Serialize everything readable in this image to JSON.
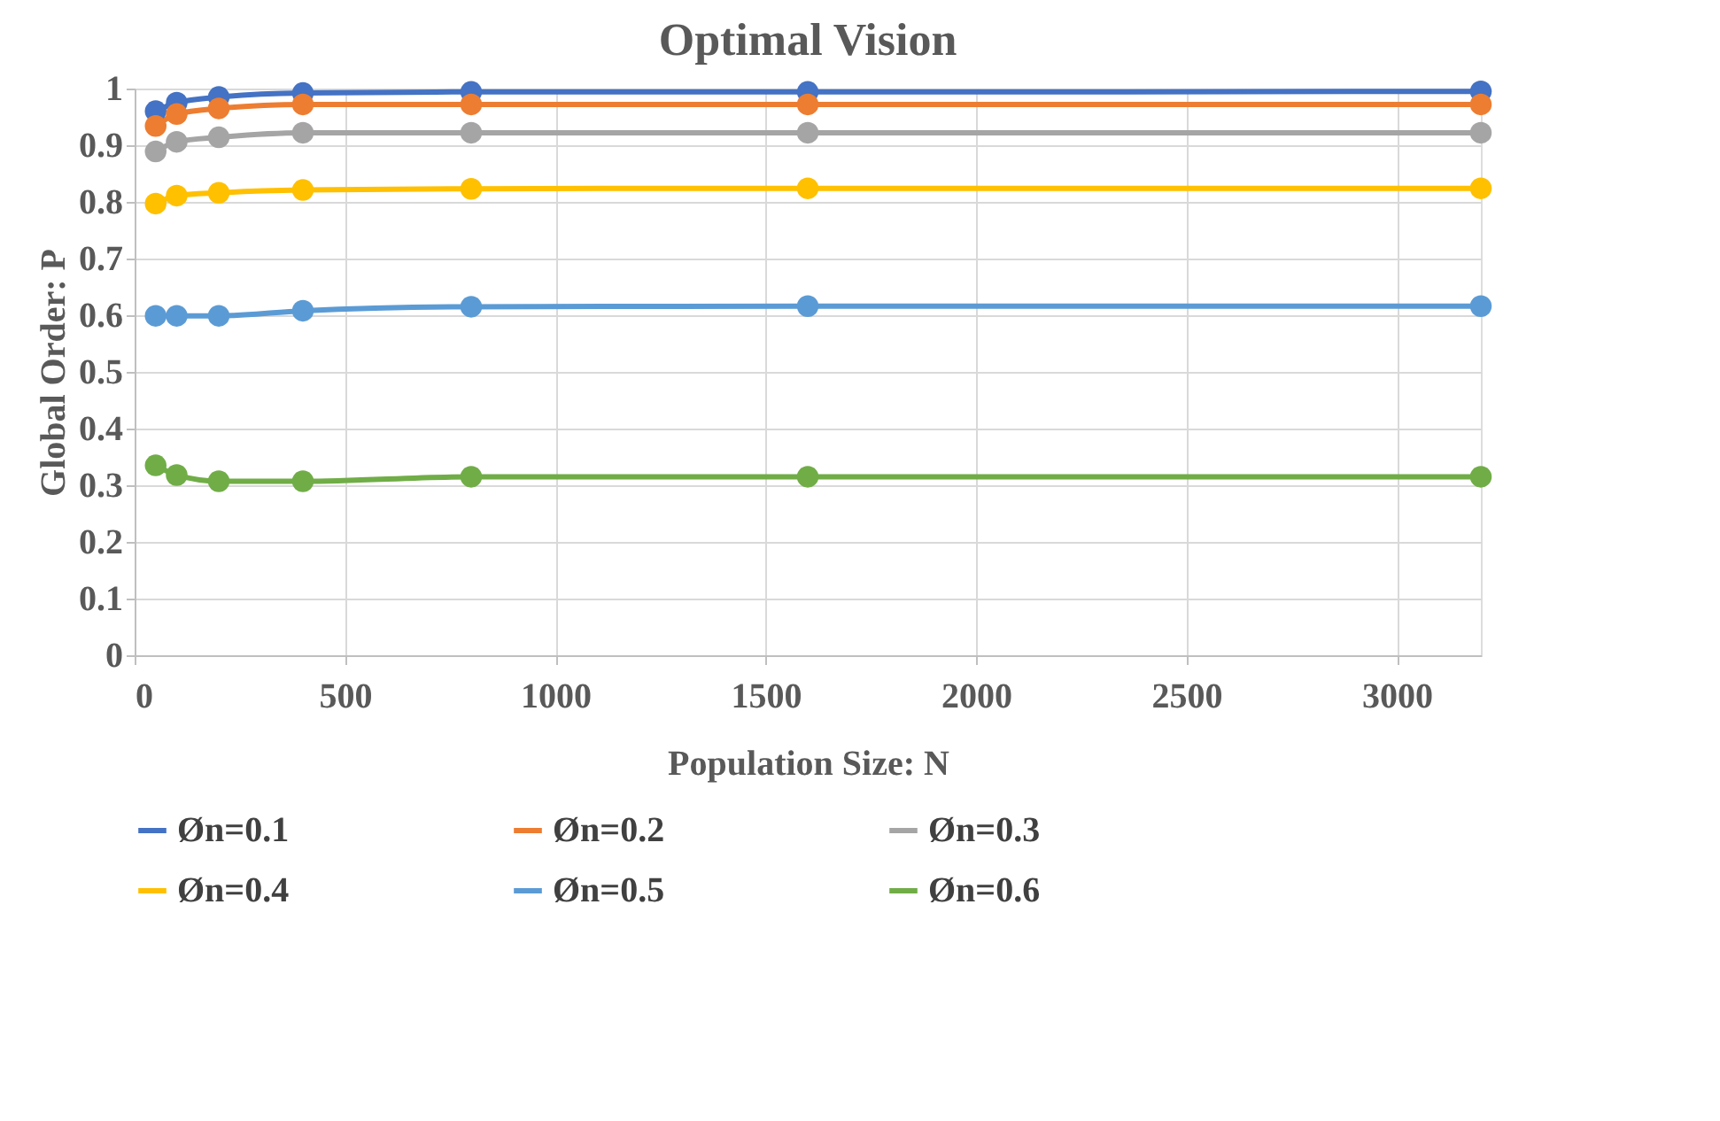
{
  "chart_data": {
    "type": "line",
    "title": "Optimal Vision",
    "xlabel": "Population Size: N",
    "ylabel": "Global Order: P",
    "x": [
      50,
      100,
      200,
      400,
      800,
      1600,
      3200
    ],
    "series": [
      {
        "name": "Øn=0.1",
        "color": "#4472c4",
        "values": [
          0.96,
          0.975,
          0.985,
          0.992,
          0.994,
          0.994,
          0.995
        ]
      },
      {
        "name": "Øn=0.2",
        "color": "#ed7d31",
        "values": [
          0.934,
          0.955,
          0.965,
          0.972,
          0.972,
          0.972,
          0.972
        ]
      },
      {
        "name": "Øn=0.3",
        "color": "#a5a5a5",
        "values": [
          0.889,
          0.906,
          0.914,
          0.922,
          0.922,
          0.922,
          0.922
        ]
      },
      {
        "name": "Øn=0.4",
        "color": "#ffc000",
        "values": [
          0.797,
          0.811,
          0.816,
          0.821,
          0.823,
          0.824,
          0.824
        ]
      },
      {
        "name": "Øn=0.5",
        "color": "#5b9bd5",
        "values": [
          0.599,
          0.599,
          0.599,
          0.608,
          0.615,
          0.616,
          0.616
        ]
      },
      {
        "name": "Øn=0.6",
        "color": "#70ad47",
        "values": [
          0.335,
          0.318,
          0.307,
          0.307,
          0.315,
          0.315,
          0.315
        ]
      }
    ],
    "xlim": [
      0,
      3200
    ],
    "xticks": [
      0,
      500,
      1000,
      1500,
      2000,
      2500,
      3000
    ],
    "ylim": [
      0,
      1
    ],
    "yticks": [
      0,
      0.1,
      0.2,
      0.3,
      0.4,
      0.5,
      0.6,
      0.7,
      0.8,
      0.9,
      1
    ],
    "grid": true,
    "legend": "bottom",
    "marker": "circle",
    "line_style": "solid"
  }
}
